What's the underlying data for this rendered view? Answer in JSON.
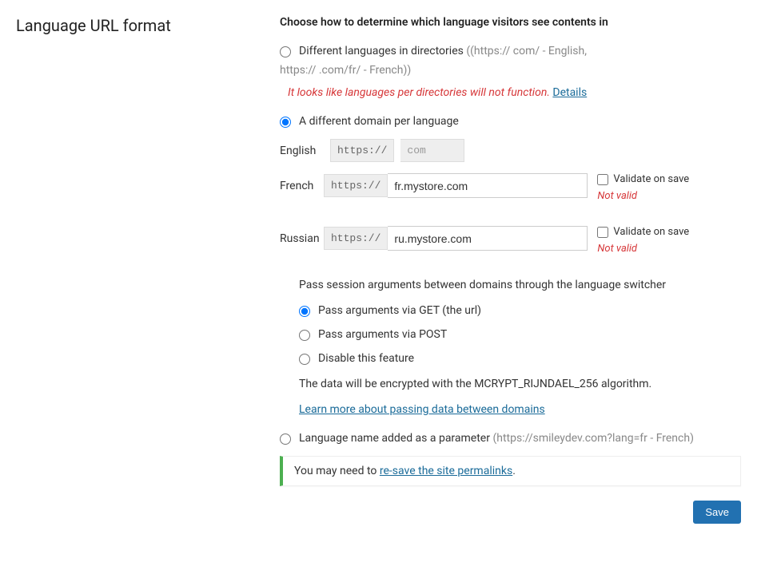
{
  "title": "Language URL format",
  "heading": "Choose how to determine which language visitors see contents in",
  "options": {
    "directories": {
      "label": "Different languages in directories",
      "example_line1": "((https://                   com/ - English,",
      "example_line2": "https://                .com/fr/ - French))"
    },
    "warning": {
      "text": "It looks like languages per directories will not function.",
      "link": "Details"
    },
    "domain": {
      "label": "A different domain per language"
    },
    "parameter": {
      "label": "Language name added as a parameter",
      "example": "(https://smileydev.com?lang=fr - French)"
    }
  },
  "languages": {
    "english": {
      "label": "English",
      "scheme": "https://",
      "domain": "com"
    },
    "french": {
      "label": "French",
      "scheme": "https://",
      "domain": "fr.mystore.com",
      "validate_label": "Validate on save",
      "status": "Not valid"
    },
    "russian": {
      "label": "Russian",
      "scheme": "https://",
      "domain": "ru.mystore.com",
      "validate_label": "Validate on save",
      "status": "Not valid"
    }
  },
  "session": {
    "heading": "Pass session arguments between domains through the language switcher",
    "get_label": "Pass arguments via GET (the url)",
    "post_label": "Pass arguments via POST",
    "disable_label": "Disable this feature",
    "encrypt_note": "The data will be encrypted with the MCRYPT_RIJNDAEL_256 algorithm.",
    "learn_link": "Learn more about passing data between domains"
  },
  "notice": {
    "prefix": "You may need to ",
    "link": "re-save the site permalinks",
    "suffix": "."
  },
  "save_button": "Save",
  "colors": {
    "link": "#1a6b99",
    "error": "#d63638",
    "notice_border": "#4caf50",
    "button_bg": "#2271b1"
  }
}
